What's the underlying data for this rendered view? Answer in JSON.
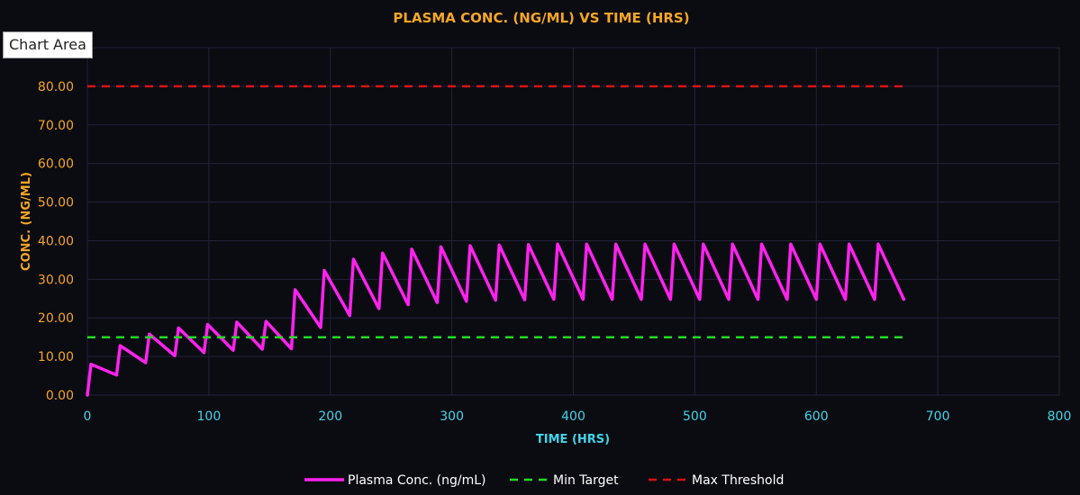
{
  "tooltip": "Chart Area",
  "colors": {
    "background": "#0b0b12",
    "grid": "#23233a",
    "title": "#f5a623",
    "y_ticks": "#f5a623",
    "x_ticks": "#3fd6e8",
    "plasma": "#ff22ee",
    "min_target": "#22dd22",
    "max_threshold": "#dd1111",
    "legend_text": "#ffffff"
  },
  "chart_data": {
    "type": "line",
    "title": "PLASMA CONC. (NG/ML) VS TIME (HRS)",
    "xlabel": "TIME (HRS)",
    "ylabel": "CONC. (NG/ML)",
    "xlim": [
      0,
      800
    ],
    "ylim": [
      0,
      90
    ],
    "x_ticks": [
      "0",
      "100",
      "200",
      "300",
      "400",
      "500",
      "600",
      "700",
      "800"
    ],
    "y_ticks": [
      "0.00",
      "10.00",
      "20.00",
      "30.00",
      "40.00",
      "50.00",
      "60.00",
      "70.00",
      "80.00"
    ],
    "grid": true,
    "legend_position": "bottom",
    "series": [
      {
        "name": "Plasma Conc. (ng/mL)",
        "style": "solid",
        "x": [
          0,
          3,
          24,
          27,
          48,
          51,
          72,
          75,
          96,
          99,
          120,
          123,
          144,
          147,
          168,
          171,
          192,
          195,
          216,
          219,
          240,
          243,
          264,
          267,
          288,
          291,
          312,
          315,
          336,
          339,
          360,
          363,
          384,
          387,
          408,
          411,
          432,
          435,
          456,
          459,
          480,
          483,
          504,
          507,
          528,
          531,
          552,
          555,
          576,
          579,
          600,
          603,
          624,
          627,
          648,
          651,
          672
        ],
        "y": [
          0,
          8.0,
          5.2,
          12.8,
          8.4,
          15.8,
          10.2,
          17.4,
          11.0,
          18.3,
          11.6,
          18.9,
          11.9,
          19.1,
          12.0,
          27.3,
          17.5,
          32.3,
          20.6,
          35.2,
          22.4,
          36.8,
          23.4,
          37.8,
          24.0,
          38.4,
          24.3,
          38.7,
          24.6,
          38.9,
          24.7,
          39.0,
          24.8,
          39.1,
          24.8,
          39.1,
          24.8,
          39.1,
          24.8,
          39.1,
          24.8,
          39.1,
          24.8,
          39.1,
          24.8,
          39.1,
          24.8,
          39.1,
          24.8,
          39.1,
          24.8,
          39.1,
          24.8,
          39.1,
          24.8,
          39.1,
          24.8
        ]
      },
      {
        "name": "Min Target",
        "style": "dashed",
        "x": [
          0,
          672
        ],
        "y": [
          15,
          15
        ]
      },
      {
        "name": "Max Threshold",
        "style": "dashed",
        "x": [
          0,
          672
        ],
        "y": [
          80,
          80
        ]
      }
    ]
  }
}
